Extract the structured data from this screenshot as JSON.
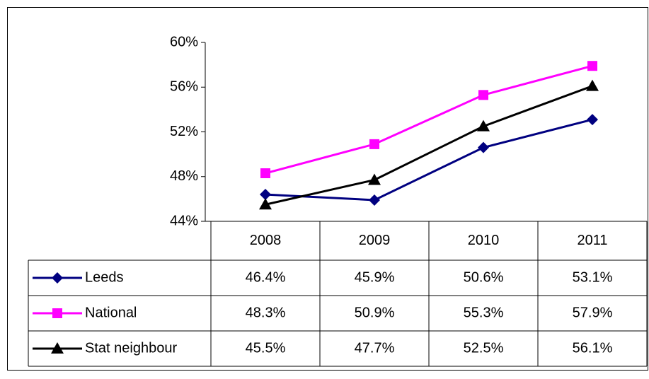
{
  "chart_data": {
    "type": "line",
    "categories": [
      "2008",
      "2009",
      "2010",
      "2011"
    ],
    "series": [
      {
        "name": "Leeds",
        "color": "#000080",
        "marker": "diamond",
        "values": [
          46.4,
          45.9,
          50.6,
          53.1
        ],
        "value_labels": [
          "46.4%",
          "45.9%",
          "50.6%",
          "53.1%"
        ]
      },
      {
        "name": "National",
        "color": "#ff00ff",
        "marker": "square",
        "values": [
          48.3,
          50.9,
          55.3,
          57.9
        ],
        "value_labels": [
          "48.3%",
          "50.9%",
          "55.3%",
          "57.9%"
        ]
      },
      {
        "name": "Stat neighbour",
        "color": "#000000",
        "marker": "triangle",
        "values": [
          45.5,
          47.7,
          52.5,
          56.1
        ],
        "value_labels": [
          "45.5%",
          "47.7%",
          "52.5%",
          "56.1%"
        ]
      }
    ],
    "ylim": [
      44,
      60
    ],
    "yticks": [
      {
        "value": 44,
        "label": "44%"
      },
      {
        "value": 48,
        "label": "48%"
      },
      {
        "value": 52,
        "label": "52%"
      },
      {
        "value": 56,
        "label": "56%"
      },
      {
        "value": 60,
        "label": "60%"
      }
    ],
    "data_table": true
  }
}
